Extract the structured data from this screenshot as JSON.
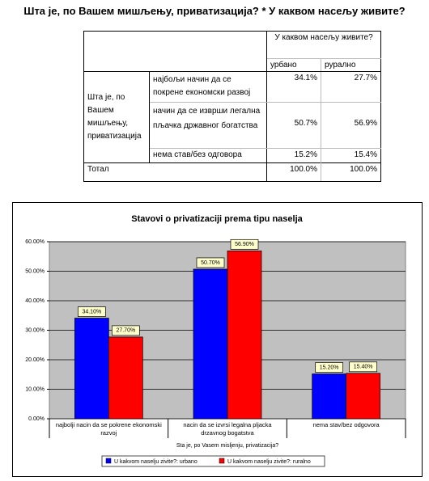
{
  "title": "Шта је, по Вашем мишљењу, приватизација? * У каквом насељу живите?",
  "table": {
    "column_group": "У каквом насељу живите?",
    "columns": [
      "урбано",
      "рурално"
    ],
    "row_group": "Шта је, по Вашем мишљењу, приватизација",
    "rows": [
      {
        "label": "најбољи начин да се покрене економски развој",
        "values": [
          "34.1%",
          "27.7%"
        ]
      },
      {
        "label": "начин да се изврши легална пљачка државног богатства",
        "values": [
          "50.7%",
          "56.9%"
        ]
      },
      {
        "label": "нема став/без одговора",
        "values": [
          "15.2%",
          "15.4%"
        ]
      }
    ],
    "total": {
      "label": "Тотал",
      "values": [
        "100.0%",
        "100.0%"
      ]
    }
  },
  "chart_data": {
    "type": "bar",
    "title": "Stavovi o privatizaciji prema tipu naselja",
    "x_label": "Sta je, po Vasem misljenju, privatizacija?",
    "categories": [
      "najbolji nacin da se pokrene ekonomski razvoj",
      "nacin da se izvrsi legalna pljacka drzavnog bogatstva",
      "nema stav/bez odgovora"
    ],
    "series": [
      {
        "name": "U kakvom naselju zivite?: urbano",
        "color": "#0000ff",
        "values": [
          34.1,
          50.7,
          15.2
        ],
        "value_labels": [
          "34.10%",
          "50.70%",
          "15.20%"
        ]
      },
      {
        "name": "U kakvom naselju zivite?: ruralno",
        "color": "#ff0000",
        "values": [
          27.7,
          56.9,
          15.4
        ],
        "value_labels": [
          "27.70%",
          "56.90%",
          "15.40%"
        ]
      }
    ],
    "ylim": [
      0,
      60
    ],
    "yticks": [
      {
        "value": 0,
        "label": "0.00%"
      },
      {
        "value": 10,
        "label": "10.00%"
      },
      {
        "value": 20,
        "label": "20.00%"
      },
      {
        "value": 30,
        "label": "30.00%"
      },
      {
        "value": 40,
        "label": "40.00%"
      },
      {
        "value": 50,
        "label": "50.00%"
      },
      {
        "value": 60,
        "label": "60.00%"
      }
    ],
    "grid": true,
    "legend": "bottom"
  }
}
